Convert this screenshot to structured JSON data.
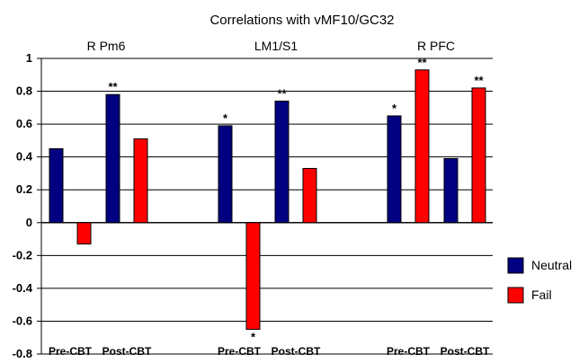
{
  "chart_data": {
    "type": "bar",
    "title": "Correlations with vMF10/GC32",
    "ylim": [
      -0.8,
      1
    ],
    "yticks": [
      1,
      0.8,
      0.6,
      0.4,
      0.2,
      0,
      -0.2,
      -0.4,
      -0.6,
      -0.8
    ],
    "ytick_labels": [
      "1",
      "0.8",
      "0.6",
      "0.4",
      "0.2",
      "0",
      "-0.2",
      "-0.4",
      "-0.6",
      "-0.8"
    ],
    "grid": "horizontal",
    "legend_position": "right",
    "groups": [
      "R Pm6",
      "LM1/S1",
      "R PFC"
    ],
    "categories": [
      "Pre-CBT",
      "Post-CBT",
      "Pre-CBT",
      "Post-CBT",
      "Pre-CBT",
      "Post-CBT"
    ],
    "series": [
      {
        "name": "Neutral",
        "color": "#000080",
        "values": [
          0.45,
          0.78,
          0.59,
          0.74,
          0.65,
          0.39
        ]
      },
      {
        "name": "Fail",
        "color": "#ff0000",
        "values": [
          -0.13,
          0.51,
          -0.65,
          0.33,
          0.93,
          0.82
        ]
      }
    ],
    "significance": {
      "Neutral": [
        "",
        "**",
        "*",
        "**",
        "*",
        ""
      ],
      "Fail": [
        "",
        "",
        "*",
        "",
        "**",
        "**"
      ]
    }
  }
}
